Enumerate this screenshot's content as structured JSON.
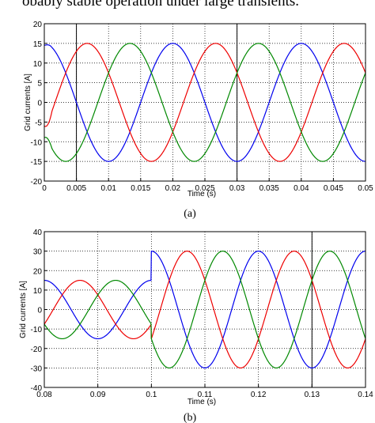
{
  "header_text": "obably stable operation under large transients.",
  "colors": {
    "phase_a": "#0000ee",
    "phase_b": "#ee0000",
    "phase_c": "#008800"
  },
  "chart_data": [
    {
      "type": "line",
      "caption": "(a)",
      "xlabel": "Time (s)",
      "ylabel": "Grid currents [A]",
      "xlim": [
        0,
        0.05
      ],
      "ylim": [
        -20,
        20
      ],
      "xticks": [
        "0",
        "0.005",
        "0.01",
        "0.015",
        "0.02",
        "0.025",
        "0.03",
        "0.035",
        "0.04",
        "0.045",
        "0.05"
      ],
      "yticks": [
        "20",
        "15",
        "10",
        "5",
        "0",
        "-5",
        "-10",
        "-15",
        "-20"
      ],
      "grid": "dotted",
      "vertical_markers": [
        0.005,
        0.03
      ],
      "series": [
        {
          "color": "#0000ee",
          "amplitude": 15,
          "frequency_hz": 50,
          "phase_deg": 90,
          "startup_transient": true
        },
        {
          "color": "#ee0000",
          "amplitude": 15,
          "frequency_hz": 50,
          "phase_deg": -30,
          "startup_transient": true
        },
        {
          "color": "#008800",
          "amplitude": 15,
          "frequency_hz": 50,
          "phase_deg": 210,
          "startup_transient": true
        }
      ]
    },
    {
      "type": "line",
      "caption": "(b)",
      "xlabel": "Time (s)",
      "ylabel": "Grid currents [A]",
      "xlim": [
        0.08,
        0.14
      ],
      "ylim": [
        -40,
        40
      ],
      "xticks": [
        "0.08",
        "0.09",
        "0.1",
        "0.11",
        "0.12",
        "0.13",
        "0.14"
      ],
      "yticks": [
        "40",
        "30",
        "20",
        "10",
        "0",
        "-10",
        "-20",
        "-30",
        "-40"
      ],
      "grid": "dotted",
      "vertical_markers": [
        0.13
      ],
      "step_time": 0.1,
      "series": [
        {
          "color": "#0000ee",
          "amplitude_before": 15,
          "amplitude_after": 30,
          "frequency_hz": 50,
          "phase_deg": 90
        },
        {
          "color": "#ee0000",
          "amplitude_before": 15,
          "amplitude_after": 30,
          "frequency_hz": 50,
          "phase_deg": -30
        },
        {
          "color": "#008800",
          "amplitude_before": 15,
          "amplitude_after": 30,
          "frequency_hz": 50,
          "phase_deg": 210
        }
      ]
    }
  ]
}
